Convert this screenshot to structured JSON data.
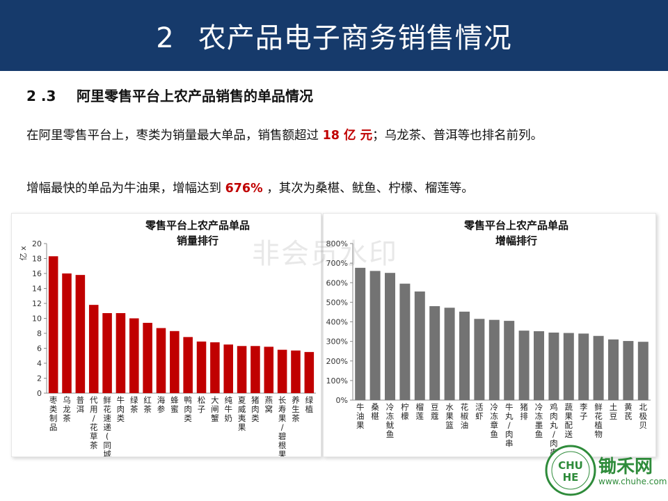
{
  "header": {
    "number": "2",
    "title": "农产品电子商务销售情况"
  },
  "section": {
    "number": "2 .3",
    "title": "阿里零售平台上农产品销售的单品情况"
  },
  "para1": {
    "a": "在阿里零售平台上，枣类为销量最大单品，销售额超过 ",
    "hl": "18 亿 元",
    "b": "；乌龙茶、普洱等也排名前列。"
  },
  "para2": {
    "a": "增幅最快的单品为牛油果，增幅达到 ",
    "hl": "676%",
    "b": " ，其次为桑椹、鱿鱼、柠檬、榴莲等。"
  },
  "watermark": "非会员水印",
  "logo": {
    "name": "锄禾网",
    "url": "www.chuhe.com",
    "badge_text": "CHUHE"
  },
  "colors": {
    "banner": "#163a6b",
    "bar_red": "#c00000",
    "bar_gray": "#737373",
    "highlight": "#c00000",
    "logo_green": "#2e8b3a"
  },
  "chart_data": [
    {
      "type": "bar",
      "title_lines": [
        "零售平台上农产品单品",
        "销量排行"
      ],
      "ylabel": "亿 x",
      "ylim": [
        0,
        20
      ],
      "yticks": [
        "0",
        "2",
        "4",
        "6",
        "8",
        "10",
        "12",
        "14",
        "16",
        "18",
        "20"
      ],
      "categories": [
        "枣类制品",
        "乌龙茶",
        "普洱",
        "代用/花草茶",
        "鲜花速递(同城)",
        "牛肉类",
        "绿茶",
        "红茶",
        "海参",
        "蜂蜜",
        "鸭肉类",
        "松子",
        "大闸蟹",
        "纯牛奶",
        "夏威夷果",
        "猪肉类",
        "燕窝",
        "长寿果/碧根果",
        "养生茶",
        "绿植"
      ],
      "values": [
        18.3,
        16.0,
        15.8,
        11.8,
        10.7,
        10.7,
        10.0,
        9.4,
        8.7,
        8.3,
        7.5,
        6.9,
        6.8,
        6.5,
        6.3,
        6.3,
        6.2,
        5.8,
        5.7,
        5.5
      ],
      "color": "#c00000"
    },
    {
      "type": "bar",
      "title_lines": [
        "零售平台上农产品单品",
        "增幅排行"
      ],
      "ylim": [
        0,
        800
      ],
      "yticks": [
        "0%",
        "100%",
        "200%",
        "300%",
        "400%",
        "500%",
        "600%",
        "700%",
        "800%"
      ],
      "categories": [
        "牛油果",
        "桑椹",
        "冷冻鱿鱼",
        "柠檬",
        "榴莲",
        "豆蔻",
        "水果篮",
        "花椒油",
        "活虾",
        "冷冻章鱼",
        "牛丸/肉串",
        "猪排",
        "冷冻墨鱼",
        "鸡肉丸/肉串",
        "蔬果配送",
        "李子",
        "鲜花植物",
        "土豆",
        "黄芪",
        "北极贝"
      ],
      "values": [
        676,
        660,
        650,
        595,
        555,
        480,
        472,
        452,
        415,
        410,
        405,
        355,
        352,
        345,
        343,
        340,
        328,
        310,
        302,
        298
      ],
      "color": "#737373"
    }
  ]
}
